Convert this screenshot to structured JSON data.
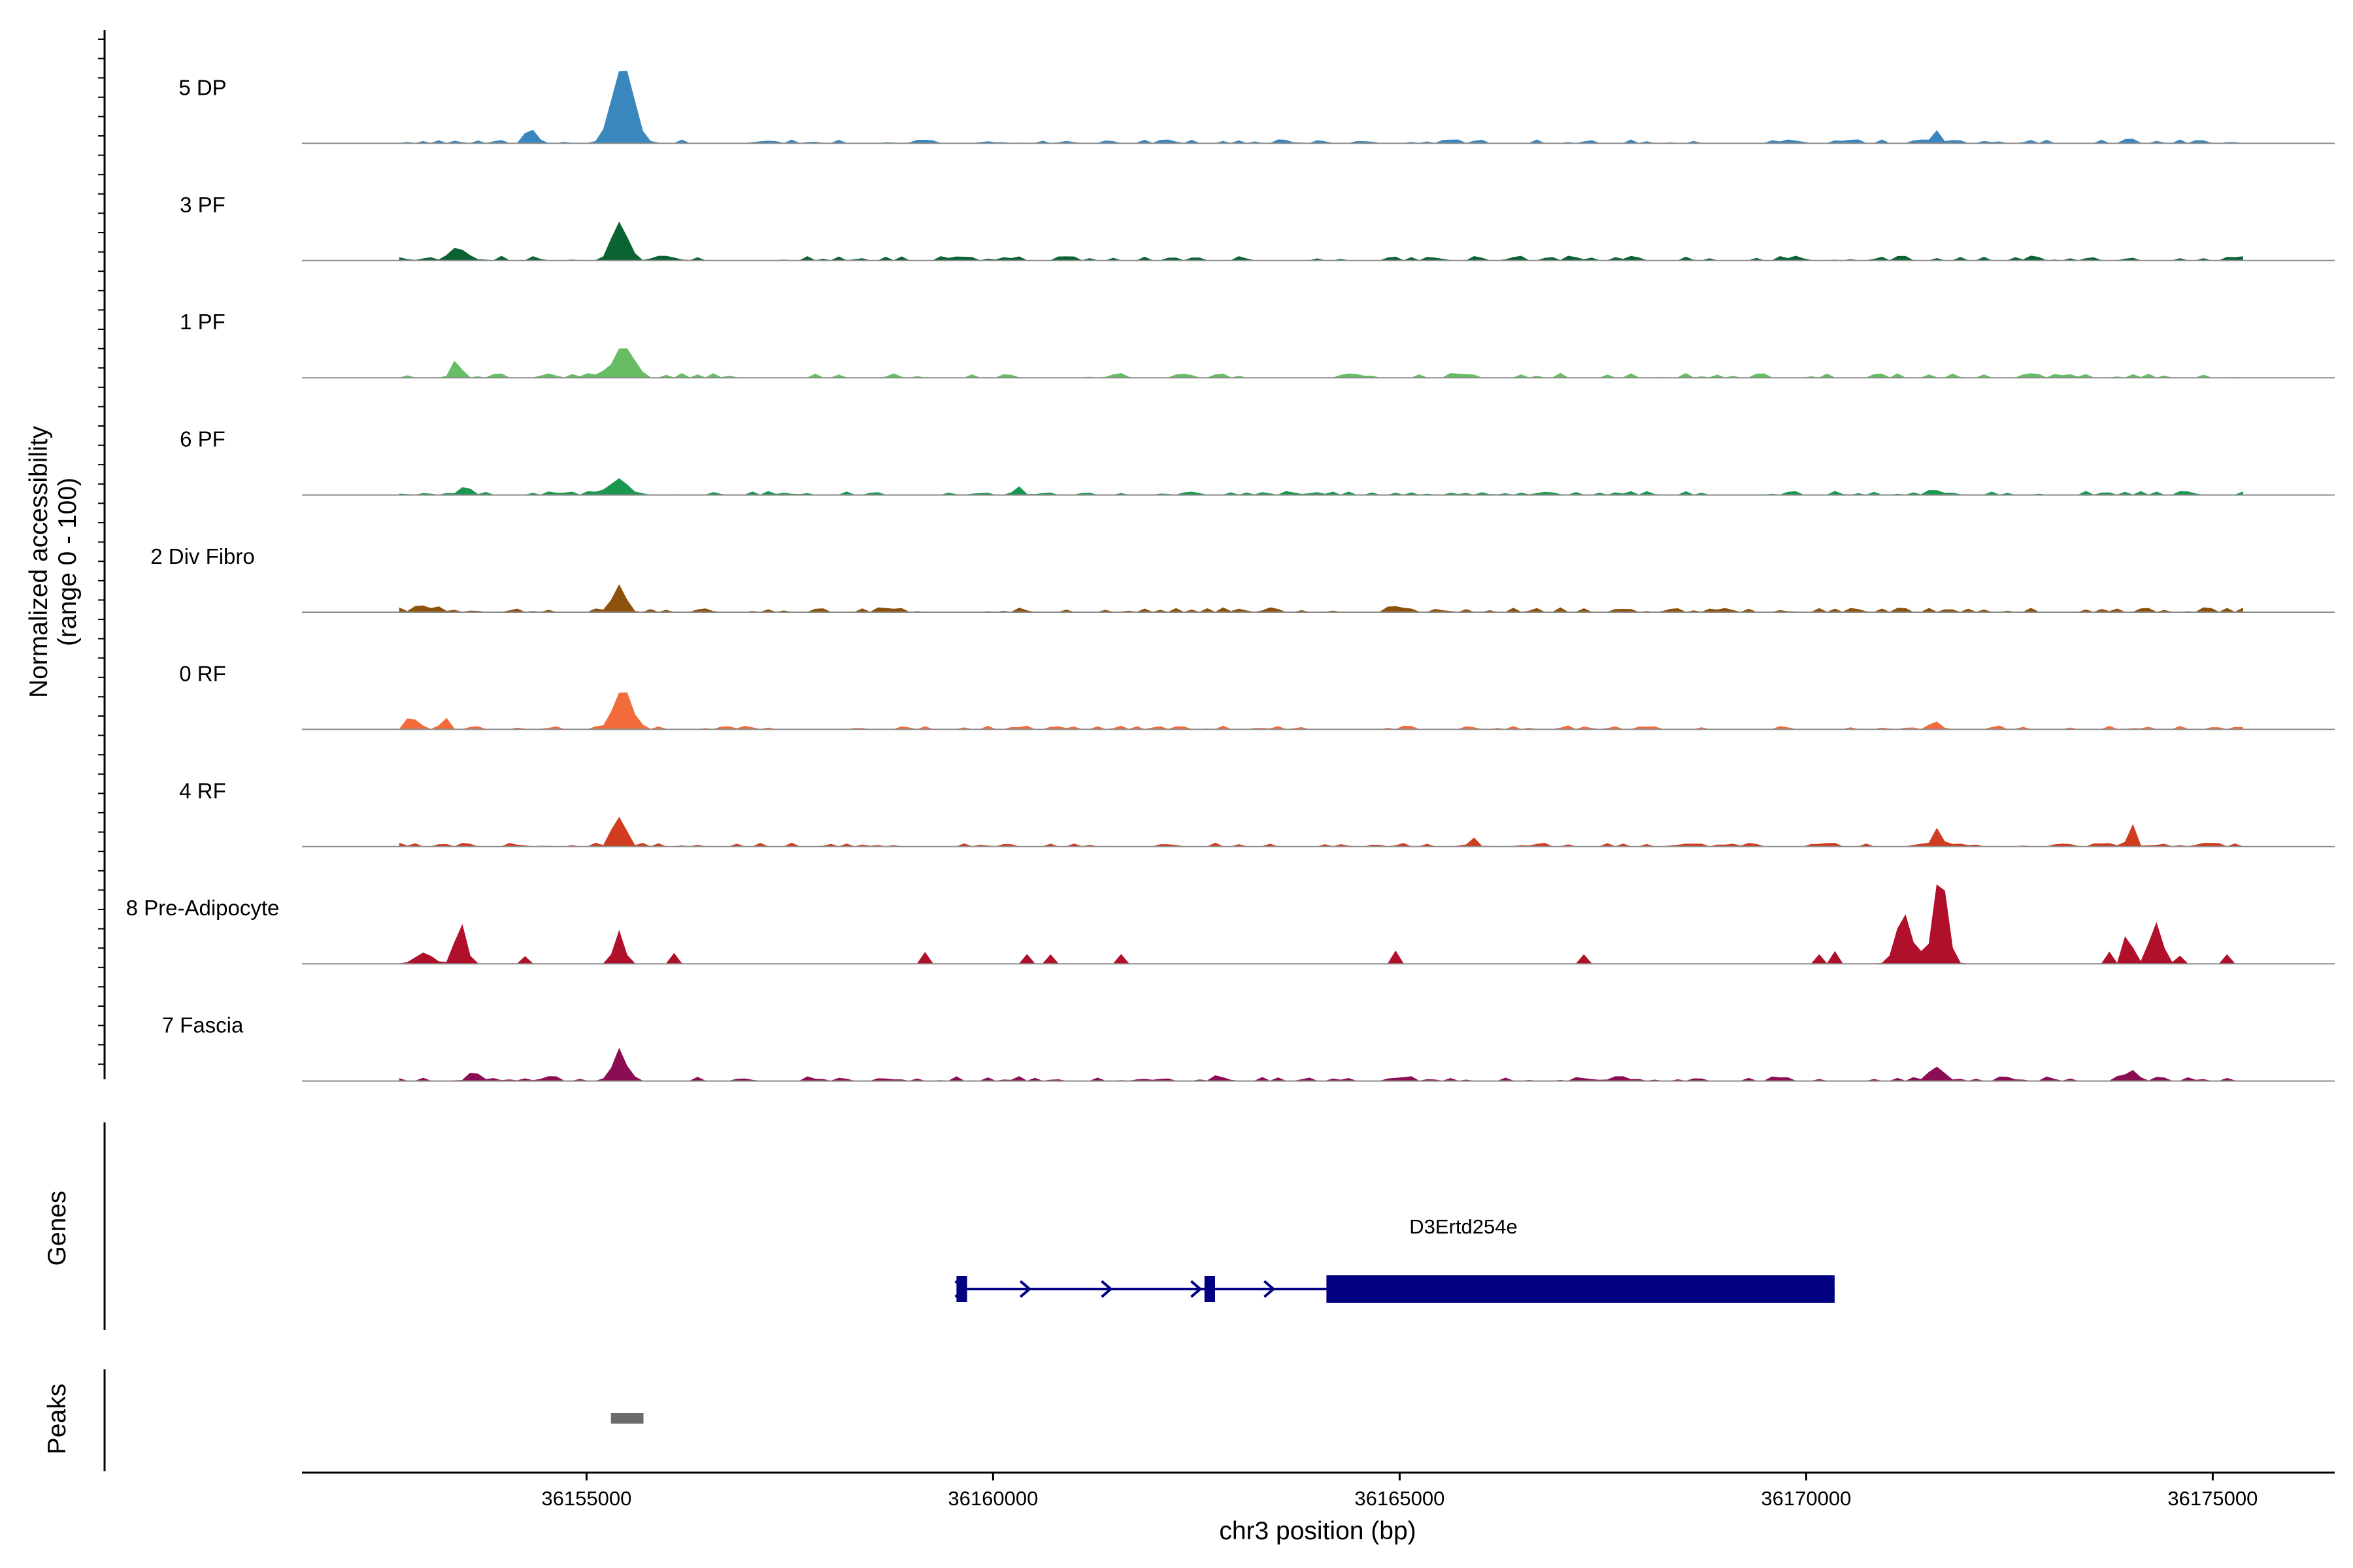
{
  "chart_data": {
    "type": "area",
    "title": "",
    "ylabel": [
      "Normalized accessibility",
      "(range 0 - 100)"
    ],
    "xlabel": "chr3 position (bp)",
    "x_range": [
      36151500,
      36176500
    ],
    "x_ticks": [
      36155000,
      36160000,
      36165000,
      36170000,
      36175000
    ],
    "x_tick_labels": [
      "36155000",
      "36160000",
      "36165000",
      "36170000",
      "36175000"
    ],
    "y_range": [
      0,
      100
    ],
    "data_start": 36152700,
    "data_end": 36175400,
    "series": [
      {
        "name": "5 DP",
        "color": "#3a87bd",
        "peaks": [
          [
            36155450,
            85,
            250
          ],
          [
            36154300,
            18,
            90
          ],
          [
            36171600,
            14,
            100
          ],
          [
            36174000,
            5,
            100
          ]
        ],
        "baseline": 4
      },
      {
        "name": "3 PF",
        "color": "#0a6332",
        "peaks": [
          [
            36155400,
            42,
            180
          ],
          [
            36153400,
            12,
            150
          ]
        ],
        "baseline": 5
      },
      {
        "name": "1 PF",
        "color": "#66bd63",
        "peaks": [
          [
            36155450,
            35,
            220
          ],
          [
            36153400,
            20,
            110
          ]
        ],
        "baseline": 5
      },
      {
        "name": "6 PF",
        "color": "#1a9850",
        "peaks": [
          [
            36155400,
            18,
            200
          ],
          [
            36160300,
            10,
            90
          ],
          [
            36153500,
            6,
            150
          ],
          [
            36171600,
            5,
            150
          ]
        ],
        "baseline": 4
      },
      {
        "name": "2 Div Fibro",
        "color": "#8c510a",
        "peaks": [
          [
            36155400,
            30,
            150
          ],
          [
            36153000,
            6,
            200
          ],
          [
            36165000,
            5,
            200
          ]
        ],
        "baseline": 5
      },
      {
        "name": "0 RF",
        "color": "#f26b3a",
        "peaks": [
          [
            36155450,
            45,
            200
          ],
          [
            36152850,
            14,
            110
          ],
          [
            36153250,
            10,
            100
          ],
          [
            36171600,
            5,
            100
          ]
        ],
        "baseline": 4
      },
      {
        "name": "4 RF",
        "color": "#d03c1f",
        "peaks": [
          [
            36155400,
            32,
            150
          ],
          [
            36171600,
            20,
            100
          ],
          [
            36174000,
            22,
            90
          ],
          [
            36165900,
            10,
            90
          ]
        ],
        "baseline": 4
      },
      {
        "name": "8 Pre-Adipocyte",
        "color": "#b1102b",
        "peaks": [
          [
            36171650,
            100,
            160
          ],
          [
            36171200,
            55,
            180
          ],
          [
            36174300,
            45,
            150
          ],
          [
            36173950,
            20,
            80
          ],
          [
            36153450,
            45,
            130
          ],
          [
            36155400,
            36,
            120
          ],
          [
            36153000,
            12,
            200
          ]
        ],
        "baseline": 0
      },
      {
        "name": "7 Fascia",
        "color": "#8b0e55",
        "peaks": [
          [
            36155400,
            32,
            150
          ],
          [
            36171600,
            15,
            180
          ],
          [
            36174000,
            12,
            150
          ],
          [
            36153600,
            8,
            120
          ],
          [
            36162800,
            4,
            150
          ]
        ],
        "baseline": 5
      }
    ],
    "genes_label": "Genes",
    "peaks_label": "Peaks",
    "gene": {
      "name": "D3Ertd254e",
      "color": "#000080",
      "start": 36159550,
      "end": 36170350,
      "exons": [
        [
          36159550,
          36159680
        ],
        [
          36162600,
          36162730
        ],
        [
          36164100,
          36170350
        ]
      ],
      "arrows": [
        36159600,
        36160400,
        36161400,
        36162500,
        36163400
      ]
    },
    "peak_regions": [
      [
        36155300,
        36155700
      ]
    ],
    "peak_color": "#6b6b6b"
  }
}
